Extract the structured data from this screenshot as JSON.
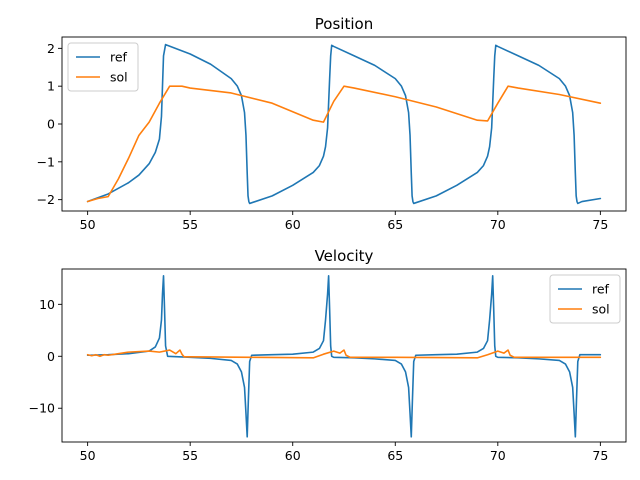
{
  "chart_data": [
    {
      "type": "line",
      "title": "Position",
      "xlabel": "",
      "ylabel": "",
      "xlim": [
        48.75,
        76.25
      ],
      "ylim": [
        -2.3,
        2.3
      ],
      "xticks": [
        50,
        55,
        60,
        65,
        70,
        75
      ],
      "yticks": [
        -2,
        -1,
        0,
        1,
        2
      ],
      "xtick_labels": [
        "50",
        "55",
        "60",
        "65",
        "70",
        "75"
      ],
      "ytick_labels": [
        "−2",
        "−1",
        "0",
        "1",
        "2"
      ],
      "grid": false,
      "legend": "top-left",
      "series": [
        {
          "name": "ref",
          "color": "#1f77b4",
          "x": [
            50,
            51,
            52,
            52.5,
            53,
            53.3,
            53.5,
            53.6,
            53.65,
            53.7,
            53.8,
            55,
            56,
            57,
            57.3,
            57.5,
            57.65,
            57.72,
            57.78,
            57.82,
            57.86,
            57.9,
            59,
            60,
            61,
            61.3,
            61.5,
            61.6,
            61.7,
            61.8,
            61.85,
            61.9,
            62,
            63,
            64,
            65,
            65.3,
            65.5,
            65.65,
            65.72,
            65.78,
            65.82,
            65.86,
            65.9,
            67,
            68,
            69,
            69.3,
            69.5,
            69.6,
            69.7,
            69.8,
            69.85,
            69.9,
            70,
            71,
            72,
            73,
            73.3,
            73.5,
            73.65,
            73.72,
            73.78,
            73.82,
            73.86,
            73.9,
            74.1,
            75
          ],
          "y": [
            -2.05,
            -1.85,
            -1.55,
            -1.35,
            -1.05,
            -0.75,
            -0.4,
            0.2,
            1.0,
            1.8,
            2.1,
            1.85,
            1.58,
            1.2,
            1.0,
            0.75,
            0.3,
            -0.3,
            -1.3,
            -1.9,
            -2.05,
            -2.1,
            -1.9,
            -1.62,
            -1.28,
            -1.1,
            -0.85,
            -0.6,
            -0.1,
            1.2,
            1.8,
            2.08,
            2.05,
            1.8,
            1.55,
            1.2,
            1.0,
            0.75,
            0.3,
            -0.3,
            -1.3,
            -1.9,
            -2.05,
            -2.1,
            -1.9,
            -1.62,
            -1.28,
            -1.1,
            -0.85,
            -0.6,
            -0.1,
            1.2,
            1.8,
            2.08,
            2.05,
            1.8,
            1.55,
            1.2,
            1.0,
            0.75,
            0.3,
            -0.3,
            -1.3,
            -1.9,
            -2.05,
            -2.1,
            -2.05,
            -1.97
          ]
        },
        {
          "name": "sol",
          "color": "#ff7f0e",
          "x": [
            50,
            50.5,
            51,
            51.5,
            52,
            52.5,
            53,
            53.5,
            54,
            54.6,
            55,
            57,
            59,
            61,
            61.5,
            62,
            62.5,
            63,
            65,
            67,
            69,
            69.5,
            70,
            70.5,
            71,
            73,
            75
          ],
          "y": [
            -2.05,
            -1.97,
            -1.92,
            -1.45,
            -0.9,
            -0.3,
            0.05,
            0.55,
            1.0,
            1.0,
            0.95,
            0.82,
            0.55,
            0.1,
            0.05,
            0.6,
            1.0,
            0.95,
            0.72,
            0.45,
            0.1,
            0.08,
            0.55,
            1.0,
            0.95,
            0.78,
            0.55
          ]
        }
      ]
    },
    {
      "type": "line",
      "title": "Velocity",
      "xlabel": "",
      "ylabel": "",
      "xlim": [
        48.75,
        76.25
      ],
      "ylim": [
        -16.5,
        16.8
      ],
      "xticks": [
        50,
        55,
        60,
        65,
        70,
        75
      ],
      "yticks": [
        -10,
        0,
        10
      ],
      "xtick_labels": [
        "50",
        "55",
        "60",
        "65",
        "70",
        "75"
      ],
      "ytick_labels": [
        "−10",
        "0",
        "10"
      ],
      "grid": false,
      "legend": "top-right",
      "series": [
        {
          "name": "ref",
          "color": "#1f77b4",
          "x": [
            50,
            51,
            52,
            53,
            53.3,
            53.5,
            53.6,
            53.65,
            53.7,
            53.75,
            53.8,
            53.9,
            55,
            56,
            57,
            57.3,
            57.5,
            57.65,
            57.72,
            57.78,
            57.84,
            57.9,
            58,
            59,
            60,
            61,
            61.3,
            61.5,
            61.6,
            61.7,
            61.75,
            61.8,
            61.85,
            61.9,
            62,
            63,
            64,
            65,
            65.3,
            65.5,
            65.65,
            65.72,
            65.78,
            65.84,
            65.9,
            66,
            67,
            68,
            69,
            69.3,
            69.5,
            69.6,
            69.7,
            69.75,
            69.8,
            69.85,
            69.9,
            70,
            71,
            72,
            73,
            73.3,
            73.5,
            73.65,
            73.72,
            73.78,
            73.84,
            73.9,
            74,
            75
          ],
          "y": [
            0.2,
            0.3,
            0.5,
            1.0,
            1.8,
            3.5,
            7.0,
            12.0,
            15.5,
            9.0,
            2.0,
            0.0,
            -0.2,
            -0.4,
            -0.8,
            -1.5,
            -3.0,
            -6.0,
            -11.0,
            -15.5,
            -8.0,
            -1.0,
            0.2,
            0.3,
            0.4,
            0.8,
            1.5,
            3.0,
            7.0,
            12.0,
            15.5,
            9.0,
            2.0,
            0.0,
            -0.2,
            -0.3,
            -0.5,
            -0.8,
            -1.5,
            -3.0,
            -6.0,
            -11.0,
            -15.5,
            -8.0,
            -1.0,
            0.2,
            0.3,
            0.4,
            0.8,
            1.5,
            3.0,
            7.0,
            12.0,
            15.5,
            9.0,
            2.0,
            0.0,
            -0.2,
            -0.3,
            -0.5,
            -0.8,
            -1.5,
            -3.0,
            -6.0,
            -11.0,
            -15.5,
            -8.0,
            -1.0,
            0.3,
            0.3
          ]
        },
        {
          "name": "sol",
          "color": "#ff7f0e",
          "x": [
            50,
            50.2,
            50.4,
            50.6,
            50.8,
            51,
            51.5,
            52,
            53,
            53.5,
            54,
            54.3,
            54.5,
            54.6,
            54.7,
            55,
            58,
            61,
            61.5,
            62,
            62.3,
            62.5,
            62.6,
            62.8,
            65,
            69,
            69.5,
            70,
            70.3,
            70.5,
            70.6,
            70.8,
            73,
            75
          ],
          "y": [
            0.3,
            0.1,
            0.3,
            0.0,
            0.3,
            0.2,
            0.5,
            0.8,
            1.0,
            0.8,
            1.2,
            0.5,
            1.2,
            0.4,
            -0.1,
            -0.1,
            -0.2,
            -0.3,
            0.4,
            1.0,
            0.6,
            1.2,
            0.2,
            -0.2,
            -0.2,
            -0.3,
            0.3,
            1.0,
            0.6,
            1.2,
            0.2,
            -0.2,
            -0.2,
            -0.2
          ]
        }
      ]
    }
  ]
}
